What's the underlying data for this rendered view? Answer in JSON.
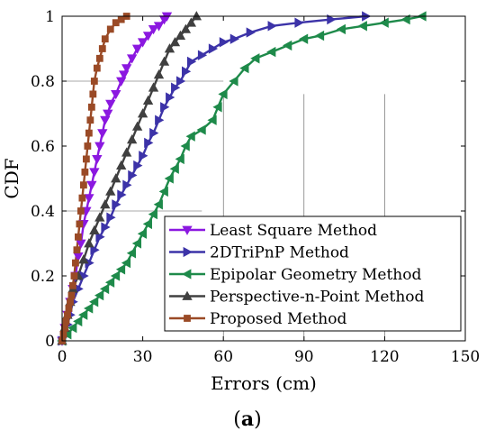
{
  "chart_data": {
    "type": "line",
    "xlabel": "Errors (cm)",
    "ylabel": "CDF",
    "xlim": [
      0,
      150
    ],
    "ylim": [
      0,
      1
    ],
    "x_ticks": [
      "0",
      "30",
      "60",
      "90",
      "120",
      "150"
    ],
    "y_ticks": [
      "0",
      "0.2",
      "0.4",
      "0.6",
      "0.8",
      "1"
    ],
    "grid": false,
    "legend_position": "bottom-right",
    "caption_open": "(",
    "caption_letter": "a",
    "caption_close": ")",
    "series": [
      {
        "name": "Least Square Method",
        "color": "#8B18E0",
        "marker": "triangle-down",
        "points": [
          [
            0,
            0
          ],
          [
            1,
            0.04
          ],
          [
            2,
            0.08
          ],
          [
            3,
            0.12
          ],
          [
            4,
            0.16
          ],
          [
            5,
            0.2
          ],
          [
            6,
            0.26
          ],
          [
            7,
            0.3
          ],
          [
            8,
            0.36
          ],
          [
            9,
            0.4
          ],
          [
            10,
            0.44
          ],
          [
            11,
            0.48
          ],
          [
            12,
            0.52
          ],
          [
            13,
            0.56
          ],
          [
            14,
            0.6
          ],
          [
            15,
            0.64
          ],
          [
            16,
            0.68
          ],
          [
            17,
            0.7
          ],
          [
            18,
            0.73
          ],
          [
            20,
            0.76
          ],
          [
            22,
            0.8
          ],
          [
            23,
            0.82
          ],
          [
            24,
            0.84
          ],
          [
            26,
            0.87
          ],
          [
            28,
            0.9
          ],
          [
            30,
            0.92
          ],
          [
            32,
            0.94
          ],
          [
            34,
            0.96
          ],
          [
            36,
            0.97
          ],
          [
            38,
            0.99
          ],
          [
            39,
            1
          ]
        ]
      },
      {
        "name": "2DTriPnP Method",
        "color": "#3C33A8",
        "marker": "triangle-right",
        "points": [
          [
            0,
            0
          ],
          [
            1,
            0.02
          ],
          [
            2,
            0.05
          ],
          [
            3,
            0.08
          ],
          [
            4,
            0.12
          ],
          [
            6,
            0.16
          ],
          [
            8,
            0.2
          ],
          [
            10,
            0.24
          ],
          [
            12,
            0.28
          ],
          [
            14,
            0.32
          ],
          [
            16,
            0.35
          ],
          [
            18,
            0.38
          ],
          [
            20,
            0.42
          ],
          [
            22,
            0.45
          ],
          [
            24,
            0.48
          ],
          [
            26,
            0.51
          ],
          [
            28,
            0.54
          ],
          [
            30,
            0.57
          ],
          [
            32,
            0.61
          ],
          [
            34,
            0.64
          ],
          [
            36,
            0.68
          ],
          [
            38,
            0.72
          ],
          [
            40,
            0.75
          ],
          [
            42,
            0.78
          ],
          [
            44,
            0.8
          ],
          [
            46,
            0.83
          ],
          [
            48,
            0.86
          ],
          [
            52,
            0.88
          ],
          [
            56,
            0.9
          ],
          [
            60,
            0.92
          ],
          [
            64,
            0.93
          ],
          [
            70,
            0.95
          ],
          [
            78,
            0.97
          ],
          [
            88,
            0.98
          ],
          [
            100,
            0.99
          ],
          [
            113,
            1
          ]
        ]
      },
      {
        "name": "Epipolar Geometry Method",
        "color": "#1E8A4A",
        "marker": "triangle-left",
        "points": [
          [
            0,
            0
          ],
          [
            2,
            0.02
          ],
          [
            4,
            0.04
          ],
          [
            6,
            0.06
          ],
          [
            8,
            0.08
          ],
          [
            10,
            0.1
          ],
          [
            12,
            0.12
          ],
          [
            14,
            0.14
          ],
          [
            16,
            0.16
          ],
          [
            18,
            0.18
          ],
          [
            20,
            0.2
          ],
          [
            22,
            0.22
          ],
          [
            24,
            0.24
          ],
          [
            26,
            0.27
          ],
          [
            28,
            0.3
          ],
          [
            30,
            0.33
          ],
          [
            32,
            0.36
          ],
          [
            34,
            0.39
          ],
          [
            36,
            0.42
          ],
          [
            38,
            0.46
          ],
          [
            40,
            0.5
          ],
          [
            42,
            0.53
          ],
          [
            44,
            0.56
          ],
          [
            46,
            0.6
          ],
          [
            48,
            0.63
          ],
          [
            52,
            0.65
          ],
          [
            56,
            0.68
          ],
          [
            58,
            0.72
          ],
          [
            60,
            0.76
          ],
          [
            64,
            0.8
          ],
          [
            68,
            0.84
          ],
          [
            72,
            0.87
          ],
          [
            78,
            0.89
          ],
          [
            84,
            0.91
          ],
          [
            90,
            0.93
          ],
          [
            96,
            0.94
          ],
          [
            104,
            0.96
          ],
          [
            112,
            0.97
          ],
          [
            120,
            0.98
          ],
          [
            128,
            0.99
          ],
          [
            134,
            1
          ]
        ]
      },
      {
        "name": "Perspective-n-Point Method",
        "color": "#404040",
        "marker": "triangle-up",
        "points": [
          [
            0,
            0
          ],
          [
            1,
            0.04
          ],
          [
            2,
            0.08
          ],
          [
            3,
            0.12
          ],
          [
            4,
            0.16
          ],
          [
            6,
            0.2
          ],
          [
            8,
            0.25
          ],
          [
            10,
            0.3
          ],
          [
            12,
            0.34
          ],
          [
            14,
            0.38
          ],
          [
            16,
            0.42
          ],
          [
            18,
            0.46
          ],
          [
            20,
            0.5
          ],
          [
            22,
            0.54
          ],
          [
            24,
            0.58
          ],
          [
            26,
            0.62
          ],
          [
            28,
            0.66
          ],
          [
            30,
            0.7
          ],
          [
            32,
            0.74
          ],
          [
            34,
            0.78
          ],
          [
            36,
            0.82
          ],
          [
            38,
            0.86
          ],
          [
            40,
            0.9
          ],
          [
            42,
            0.92
          ],
          [
            44,
            0.94
          ],
          [
            46,
            0.96
          ],
          [
            48,
            0.98
          ],
          [
            50,
            1
          ]
        ]
      },
      {
        "name": "Proposed Method",
        "color": "#9A4A26",
        "marker": "square",
        "points": [
          [
            0,
            0
          ],
          [
            0.5,
            0.02
          ],
          [
            1,
            0.04
          ],
          [
            1.5,
            0.06
          ],
          [
            2,
            0.08
          ],
          [
            2.5,
            0.1
          ],
          [
            3,
            0.12
          ],
          [
            3.5,
            0.14
          ],
          [
            4,
            0.17
          ],
          [
            4.5,
            0.2
          ],
          [
            5,
            0.24
          ],
          [
            5.5,
            0.28
          ],
          [
            6,
            0.32
          ],
          [
            6.5,
            0.36
          ],
          [
            7,
            0.4
          ],
          [
            7.5,
            0.44
          ],
          [
            8,
            0.48
          ],
          [
            8.5,
            0.52
          ],
          [
            9,
            0.56
          ],
          [
            9.5,
            0.6
          ],
          [
            10,
            0.64
          ],
          [
            10.5,
            0.68
          ],
          [
            11,
            0.72
          ],
          [
            11.5,
            0.76
          ],
          [
            12,
            0.8
          ],
          [
            13,
            0.84
          ],
          [
            14,
            0.87
          ],
          [
            15,
            0.9
          ],
          [
            16,
            0.93
          ],
          [
            18,
            0.96
          ],
          [
            20,
            0.98
          ],
          [
            22,
            0.99
          ],
          [
            24,
            1
          ]
        ]
      }
    ]
  }
}
